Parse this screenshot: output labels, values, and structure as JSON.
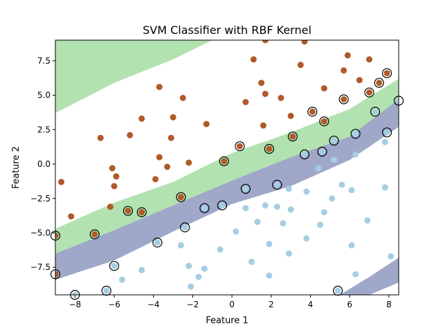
{
  "chart_data": {
    "type": "scatter",
    "title": "SVM Classifier with RBF Kernel",
    "xlabel": "Feature 1",
    "ylabel": "Feature 2",
    "xlim": [
      -9,
      8.5
    ],
    "ylim": [
      -9.5,
      9
    ],
    "xticks": [
      -8,
      -6,
      -4,
      -2,
      0,
      2,
      4,
      6,
      8
    ],
    "yticks": [
      -7.5,
      -5.0,
      -2.5,
      0.0,
      2.5,
      5.0,
      7.5
    ],
    "xtick_labels": [
      "−8",
      "−6",
      "−4",
      "−2",
      "0",
      "2",
      "4",
      "6",
      "8"
    ],
    "ytick_labels": [
      "−7.5",
      "−5.0",
      "−2.5",
      "0.0",
      "2.5",
      "5.0",
      "7.5"
    ],
    "grid": false,
    "legend": "none",
    "colors": {
      "class_0": "#a6cee3",
      "class_1": "#b15928",
      "region_class_1": "#b2e2b0",
      "margin_upper": "#b2e2b0",
      "margin_lower": "#9fa8c8",
      "region_class_0": "#ffffff",
      "support_vector_edge": "#000000"
    },
    "decision_regions": {
      "upper_margin_line": [
        [
          -9,
          -4.7
        ],
        [
          -6,
          -2.8
        ],
        [
          -3,
          -1.3
        ],
        [
          0,
          0.8
        ],
        [
          3,
          2.3
        ],
        [
          6,
          4.0
        ],
        [
          8.5,
          6.2
        ]
      ],
      "decision_boundary": [
        [
          -9,
          -6.5
        ],
        [
          -6,
          -4.8
        ],
        [
          -3,
          -3.0
        ],
        [
          0,
          -1.2
        ],
        [
          3,
          0.5
        ],
        [
          6,
          2.0
        ],
        [
          8.5,
          4.7
        ]
      ],
      "lower_margin_line": [
        [
          -9,
          -8.4
        ],
        [
          -6,
          -7.0
        ],
        [
          -3,
          -4.9
        ],
        [
          0,
          -2.9
        ],
        [
          3,
          -1.6
        ],
        [
          6,
          0.3
        ],
        [
          8.5,
          2.7
        ]
      ],
      "top_left_region": [
        [
          -9,
          3.7
        ],
        [
          -6,
          5.9
        ],
        [
          -3,
          7.6
        ],
        [
          -1,
          9
        ]
      ],
      "bottom_right_band_upper": [
        [
          5.5,
          -9.5
        ],
        [
          7,
          -8.2
        ],
        [
          8.5,
          -6.8
        ]
      ],
      "bottom_right_band_lower": [
        [
          7.0,
          -9.5
        ],
        [
          8.5,
          -8.6
        ]
      ]
    },
    "series": [
      {
        "name": "class 0",
        "points": [
          [
            -8.0,
            -9.5
          ],
          [
            -6.4,
            -9.2
          ],
          [
            -6.0,
            -7.4
          ],
          [
            -5.6,
            -8.4
          ],
          [
            -4.6,
            -7.7
          ],
          [
            -3.8,
            -5.7
          ],
          [
            -2.6,
            -5.9
          ],
          [
            -2.4,
            -4.6
          ],
          [
            -2.2,
            -7.4
          ],
          [
            -2.1,
            -8.9
          ],
          [
            -1.7,
            -8.2
          ],
          [
            -1.4,
            -7.6
          ],
          [
            -1.4,
            -3.2
          ],
          [
            -0.5,
            -3.0
          ],
          [
            -0.6,
            -6.2
          ],
          [
            0.2,
            -4.9
          ],
          [
            0.7,
            -1.8
          ],
          [
            0.7,
            -3.2
          ],
          [
            1.0,
            -7.1
          ],
          [
            1.3,
            -4.2
          ],
          [
            1.7,
            -3.0
          ],
          [
            1.9,
            -5.8
          ],
          [
            1.9,
            -8.1
          ],
          [
            2.3,
            -1.5
          ],
          [
            2.3,
            -3.1
          ],
          [
            2.6,
            -4.3
          ],
          [
            2.9,
            -1.8
          ],
          [
            2.9,
            -6.5
          ],
          [
            3.0,
            -3.3
          ],
          [
            3.7,
            0.7
          ],
          [
            3.8,
            -5.4
          ],
          [
            3.8,
            -2.0
          ],
          [
            4.4,
            -0.3
          ],
          [
            4.5,
            -4.4
          ],
          [
            4.6,
            0.9
          ],
          [
            4.7,
            -3.5
          ],
          [
            5.1,
            -2.5
          ],
          [
            5.2,
            1.7
          ],
          [
            5.2,
            0.3
          ],
          [
            5.4,
            -9.2
          ],
          [
            5.6,
            -1.5
          ],
          [
            6.1,
            -1.9
          ],
          [
            6.1,
            -5.9
          ],
          [
            6.3,
            2.2
          ],
          [
            6.3,
            0.7
          ],
          [
            6.3,
            -8.0
          ],
          [
            6.9,
            -4.1
          ],
          [
            7.3,
            3.8
          ],
          [
            7.8,
            1.6
          ],
          [
            7.8,
            -1.7
          ],
          [
            7.9,
            2.3
          ],
          [
            8.1,
            -6.7
          ],
          [
            8.5,
            4.6
          ]
        ]
      },
      {
        "name": "class 1",
        "points": [
          [
            -9.0,
            -5.2
          ],
          [
            -9.0,
            -8.0
          ],
          [
            -8.7,
            -1.3
          ],
          [
            -8.2,
            -3.8
          ],
          [
            -7.0,
            -5.1
          ],
          [
            -6.7,
            1.9
          ],
          [
            -6.1,
            -0.3
          ],
          [
            -6.2,
            -3.1
          ],
          [
            -6.0,
            -1.6
          ],
          [
            -5.9,
            -0.9
          ],
          [
            -5.3,
            -3.4
          ],
          [
            -5.2,
            2.1
          ],
          [
            -4.6,
            -3.5
          ],
          [
            -4.6,
            3.3
          ],
          [
            -3.9,
            -1.1
          ],
          [
            -3.7,
            0.5
          ],
          [
            -3.7,
            5.6
          ],
          [
            -3.3,
            -0.2
          ],
          [
            -3.1,
            1.9
          ],
          [
            -3.0,
            3.4
          ],
          [
            -2.6,
            -2.4
          ],
          [
            -2.5,
            4.8
          ],
          [
            -2.2,
            0.1
          ],
          [
            -1.3,
            2.9
          ],
          [
            -0.4,
            0.2
          ],
          [
            0.4,
            1.3
          ],
          [
            0.7,
            4.5
          ],
          [
            1.1,
            7.6
          ],
          [
            1.5,
            5.9
          ],
          [
            1.6,
            2.8
          ],
          [
            1.7,
            5.1
          ],
          [
            1.7,
            9.0
          ],
          [
            1.9,
            1.1
          ],
          [
            2.5,
            4.8
          ],
          [
            3.0,
            3.5
          ],
          [
            3.1,
            2.0
          ],
          [
            3.5,
            7.2
          ],
          [
            3.7,
            8.9
          ],
          [
            4.1,
            3.8
          ],
          [
            4.7,
            3.1
          ],
          [
            4.7,
            5.5
          ],
          [
            5.7,
            4.7
          ],
          [
            5.7,
            6.8
          ],
          [
            5.9,
            7.9
          ],
          [
            6.5,
            6.1
          ],
          [
            7.0,
            7.6
          ],
          [
            7.0,
            5.2
          ],
          [
            7.5,
            5.9
          ],
          [
            7.9,
            6.6
          ]
        ]
      }
    ],
    "support_vectors": [
      [
        -9.0,
        -5.2
      ],
      [
        -9.0,
        -8.0
      ],
      [
        -8.0,
        -9.5
      ],
      [
        -7.0,
        -5.1
      ],
      [
        -6.4,
        -9.2
      ],
      [
        -6.0,
        -7.4
      ],
      [
        -5.3,
        -3.4
      ],
      [
        -4.6,
        -3.5
      ],
      [
        -3.8,
        -5.7
      ],
      [
        -2.6,
        -2.4
      ],
      [
        -2.4,
        -4.6
      ],
      [
        -1.4,
        -3.2
      ],
      [
        -0.5,
        -3.0
      ],
      [
        -0.4,
        0.2
      ],
      [
        0.4,
        1.3
      ],
      [
        0.7,
        -1.8
      ],
      [
        1.9,
        1.1
      ],
      [
        2.3,
        -1.5
      ],
      [
        3.1,
        2.0
      ],
      [
        3.7,
        0.7
      ],
      [
        4.1,
        3.8
      ],
      [
        4.6,
        0.9
      ],
      [
        4.7,
        3.1
      ],
      [
        5.2,
        1.7
      ],
      [
        5.4,
        -9.2
      ],
      [
        5.7,
        4.7
      ],
      [
        6.3,
        2.2
      ],
      [
        7.0,
        5.2
      ],
      [
        7.3,
        3.8
      ],
      [
        7.5,
        5.9
      ],
      [
        7.9,
        6.6
      ],
      [
        7.9,
        2.3
      ],
      [
        8.5,
        4.6
      ]
    ]
  }
}
